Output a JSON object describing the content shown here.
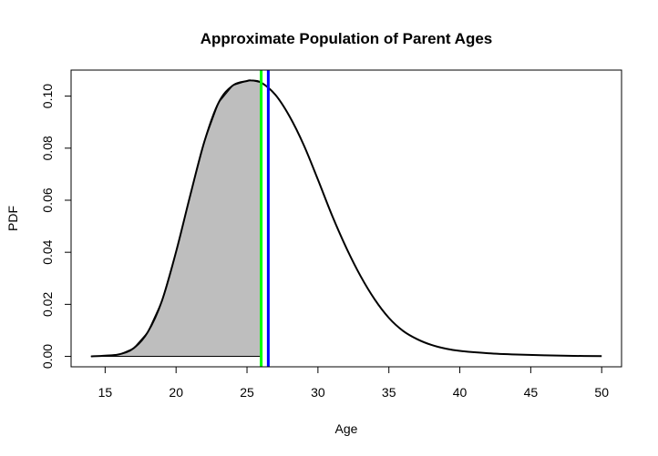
{
  "chart_data": {
    "type": "area",
    "title": "Approximate Population of Parent Ages",
    "xlabel": "Age",
    "ylabel": "PDF",
    "xlim": [
      12.6,
      51.4
    ],
    "ylim": [
      -0.004,
      0.11
    ],
    "x_ticks": [
      15,
      20,
      25,
      30,
      35,
      40,
      45,
      50
    ],
    "x_tick_labels": [
      "15",
      "20",
      "25",
      "30",
      "35",
      "40",
      "45",
      "50"
    ],
    "y_ticks": [
      0.0,
      0.02,
      0.04,
      0.06,
      0.08,
      0.1
    ],
    "y_tick_labels": [
      "0.00",
      "0.02",
      "0.04",
      "0.06",
      "0.08",
      "0.10"
    ],
    "grid": false,
    "series": [
      {
        "x": [
          14,
          15,
          16,
          17,
          18,
          19,
          20,
          21,
          22,
          23,
          24,
          25,
          25.3,
          26,
          27,
          28,
          29,
          30,
          31,
          32,
          33,
          34,
          35,
          36,
          37,
          38,
          39,
          40,
          42,
          44,
          46,
          48,
          50
        ],
        "y": [
          0.0,
          0.0003,
          0.0008,
          0.0031,
          0.0093,
          0.0213,
          0.0402,
          0.0619,
          0.0826,
          0.0975,
          0.1041,
          0.1058,
          0.106,
          0.1052,
          0.1005,
          0.0922,
          0.0812,
          0.0679,
          0.0541,
          0.0417,
          0.0309,
          0.0219,
          0.0148,
          0.0098,
          0.0066,
          0.0044,
          0.003,
          0.0021,
          0.0012,
          0.0007,
          0.0004,
          0.0002,
          0.0001
        ],
        "color": "#000000"
      }
    ],
    "shaded_region": {
      "from": 14,
      "to": 26.0,
      "color": "#bebebe"
    },
    "vertical_lines": [
      {
        "x": 26.0,
        "color": "#00ff00"
      },
      {
        "x": 26.5,
        "color": "#0000ff"
      }
    ]
  }
}
